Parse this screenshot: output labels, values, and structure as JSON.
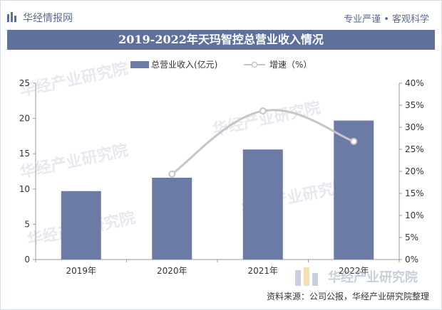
{
  "header": {
    "logo_text": "华经情报网",
    "slogan": "专业严谨 • 客观科学"
  },
  "title": "2019-2022年天玛智控总营业收入情况",
  "legend": {
    "bar_label": "总营业收入(亿元)",
    "line_label": "增速（%）"
  },
  "source": "资料来源：公司公报，华经产业研究院整理",
  "watermark_logo_text": "华经产业研究院",
  "colors": {
    "title_bar": "#5f709b",
    "bar": "#6b7ba6",
    "line": "#c6c6c6"
  },
  "chart_data": {
    "type": "bar",
    "categories": [
      "2019年",
      "2020年",
      "2021年",
      "2022年"
    ],
    "series": [
      {
        "name": "总营业收入(亿元)",
        "type": "bar",
        "axis": "left",
        "values": [
          9.7,
          11.6,
          15.6,
          19.7
        ]
      },
      {
        "name": "增速（%）",
        "type": "line",
        "axis": "right",
        "values": [
          null,
          19.4,
          33.7,
          26.8
        ]
      }
    ],
    "left_axis": {
      "ylim": [
        0,
        25
      ],
      "ticks": [
        "0",
        "5",
        "10",
        "15",
        "20",
        "25"
      ]
    },
    "right_axis": {
      "ylim": [
        0,
        40
      ],
      "ticks": [
        "0%",
        "5%",
        "10%",
        "15%",
        "20%",
        "25%",
        "30%",
        "35%",
        "40%"
      ]
    },
    "grid": false,
    "legend_position": "top"
  }
}
